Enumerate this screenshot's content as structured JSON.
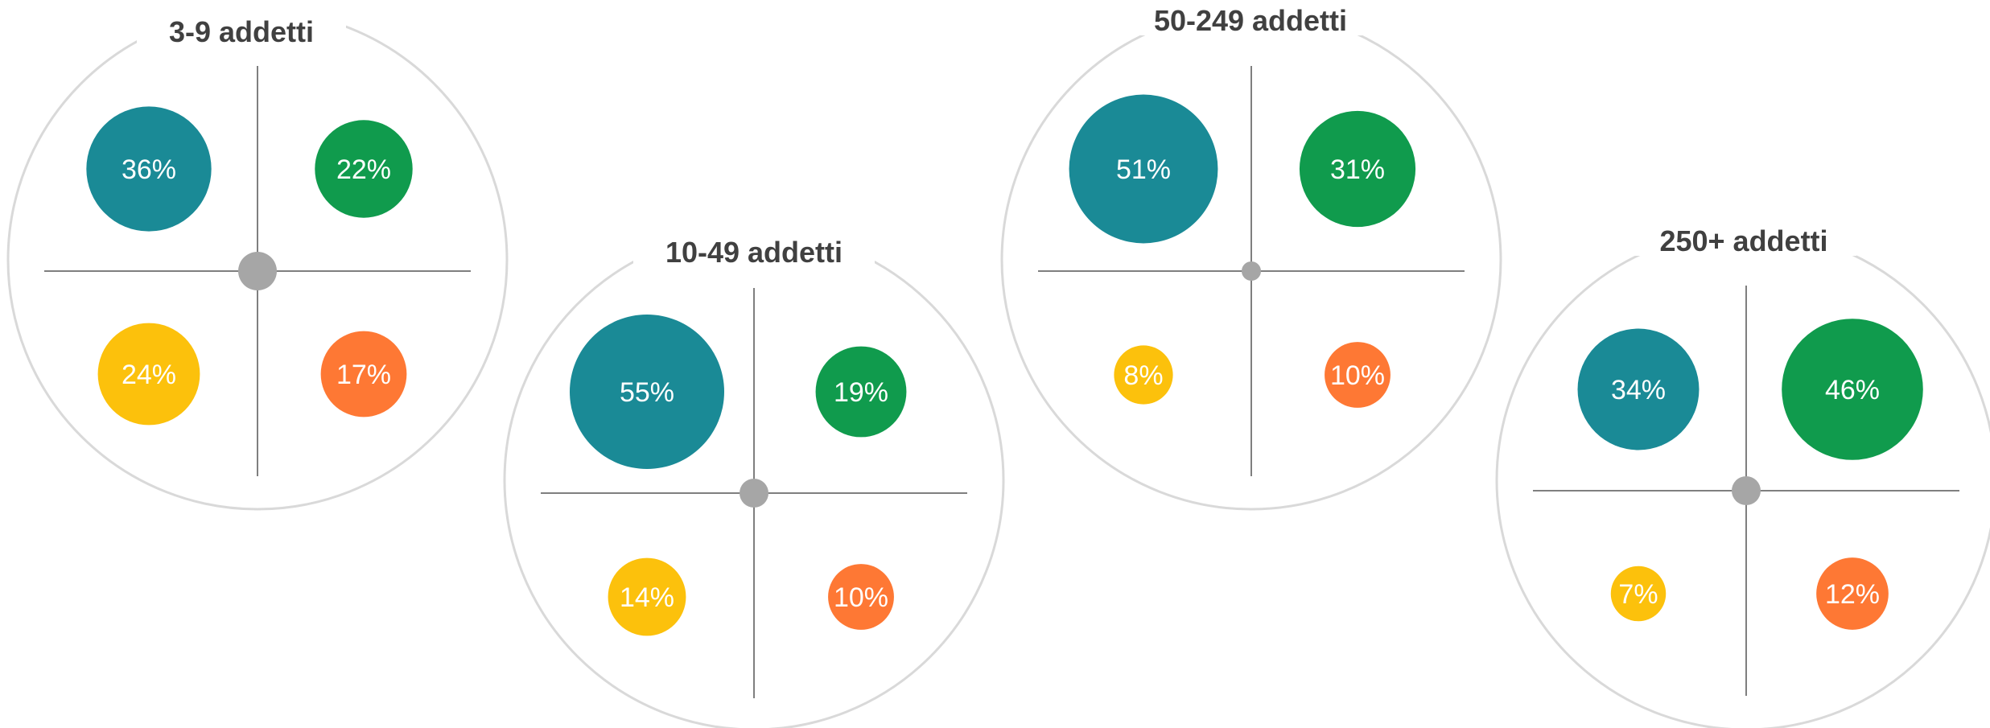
{
  "colors": {
    "teal": "#1a8a96",
    "green": "#109b4d",
    "yellow": "#fcc10c",
    "orange": "#fe7834",
    "ring": "#d9d9d9",
    "axis": "#7f7f7f",
    "center_dot": "#a6a6a6",
    "title_text": "#404040",
    "label_text": "#ffffff"
  },
  "chart_data": [
    {
      "type": "bubble-quadrant",
      "title": "3-9 addetti",
      "quadrants": [
        {
          "position": "top-left",
          "color": "teal",
          "value": 36,
          "label": "36%"
        },
        {
          "position": "top-right",
          "color": "green",
          "value": 22,
          "label": "22%"
        },
        {
          "position": "bottom-left",
          "color": "yellow",
          "value": 24,
          "label": "24%"
        },
        {
          "position": "bottom-right",
          "color": "orange",
          "value": 17,
          "label": "17%"
        }
      ]
    },
    {
      "type": "bubble-quadrant",
      "title": "10-49 addetti",
      "quadrants": [
        {
          "position": "top-left",
          "color": "teal",
          "value": 55,
          "label": "55%"
        },
        {
          "position": "top-right",
          "color": "green",
          "value": 19,
          "label": "19%"
        },
        {
          "position": "bottom-left",
          "color": "yellow",
          "value": 14,
          "label": "14%"
        },
        {
          "position": "bottom-right",
          "color": "orange",
          "value": 10,
          "label": "10%"
        }
      ]
    },
    {
      "type": "bubble-quadrant",
      "title": "50-249 addetti",
      "quadrants": [
        {
          "position": "top-left",
          "color": "teal",
          "value": 51,
          "label": "51%"
        },
        {
          "position": "top-right",
          "color": "green",
          "value": 31,
          "label": "31%"
        },
        {
          "position": "bottom-left",
          "color": "yellow",
          "value": 8,
          "label": "8%"
        },
        {
          "position": "bottom-right",
          "color": "orange",
          "value": 10,
          "label": "10%"
        }
      ]
    },
    {
      "type": "bubble-quadrant",
      "title": "250+ addetti",
      "quadrants": [
        {
          "position": "top-left",
          "color": "teal",
          "value": 34,
          "label": "34%"
        },
        {
          "position": "top-right",
          "color": "green",
          "value": 46,
          "label": "46%"
        },
        {
          "position": "bottom-left",
          "color": "yellow",
          "value": 7,
          "label": "7%"
        },
        {
          "position": "bottom-right",
          "color": "orange",
          "value": 12,
          "label": "12%"
        }
      ]
    }
  ]
}
